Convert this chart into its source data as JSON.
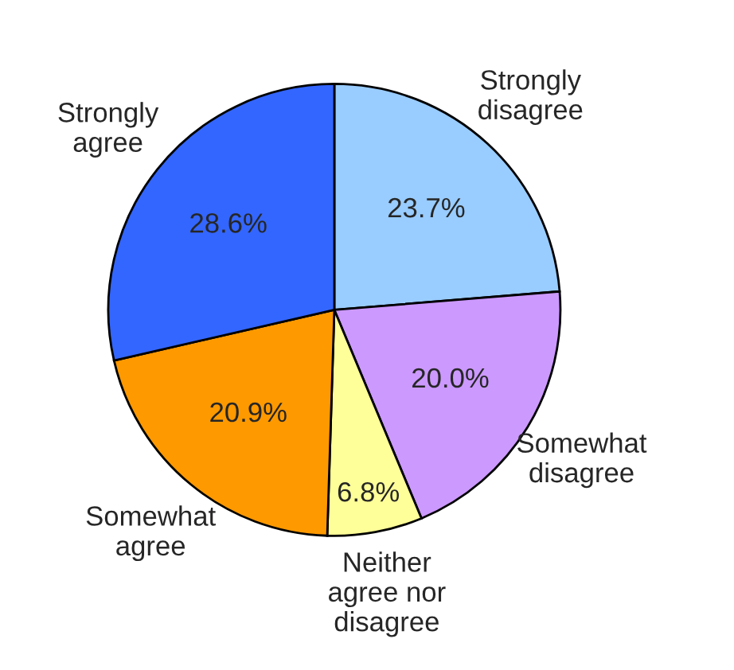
{
  "chart_data": {
    "type": "pie",
    "categories": [
      "Strongly\ndisagree",
      "Somewhat\ndisagree",
      "Neither\nagree nor\ndisagree",
      "Somewhat\nagree",
      "Strongly\nagree"
    ],
    "values": [
      23.7,
      20.0,
      6.8,
      20.9,
      28.6
    ],
    "value_labels": [
      "23.7%",
      "20.0%",
      "6.8%",
      "20.9%",
      "28.6%"
    ],
    "colors": [
      "#99ccff",
      "#cc99ff",
      "#ffff99",
      "#ff9900",
      "#3366ff"
    ],
    "legend": false
  }
}
